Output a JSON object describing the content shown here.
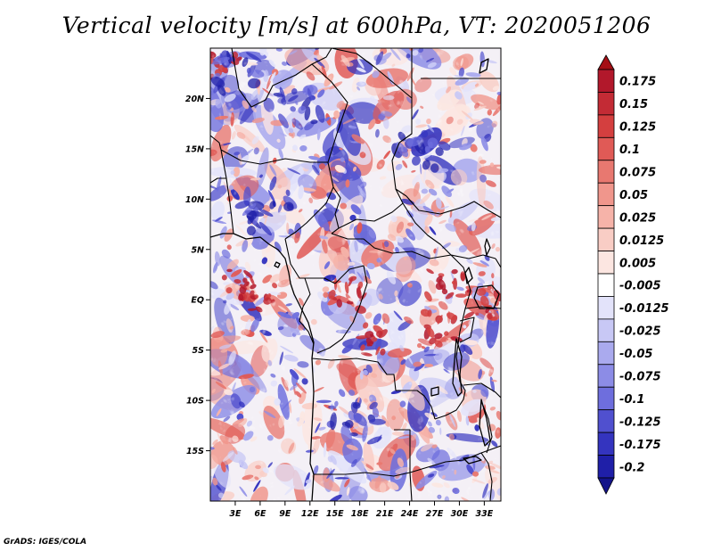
{
  "title": "Vertical velocity [m/s] at 600hPa, VT: 2020051206",
  "credit": "GrADS: IGES/COLA",
  "map": {
    "lon_range": [
      0,
      35
    ],
    "lat_range": [
      -20,
      25
    ],
    "lon_ticks": [
      {
        "value": 3,
        "label": "3E"
      },
      {
        "value": 6,
        "label": "6E"
      },
      {
        "value": 9,
        "label": "9E"
      },
      {
        "value": 12,
        "label": "12E"
      },
      {
        "value": 15,
        "label": "15E"
      },
      {
        "value": 18,
        "label": "18E"
      },
      {
        "value": 21,
        "label": "21E"
      },
      {
        "value": 24,
        "label": "24E"
      },
      {
        "value": 27,
        "label": "27E"
      },
      {
        "value": 30,
        "label": "30E"
      },
      {
        "value": 33,
        "label": "33E"
      }
    ],
    "lat_ticks": [
      {
        "value": 20,
        "label": "20N"
      },
      {
        "value": 15,
        "label": "15N"
      },
      {
        "value": 10,
        "label": "10N"
      },
      {
        "value": 5,
        "label": "5N"
      },
      {
        "value": 0,
        "label": "EQ"
      },
      {
        "value": -5,
        "label": "5S"
      },
      {
        "value": -10,
        "label": "10S"
      },
      {
        "value": -15,
        "label": "15S"
      }
    ]
  },
  "colorbar": {
    "levels": [
      {
        "label": "0.175",
        "color": "#b2182b"
      },
      {
        "label": "0.15",
        "color": "#c32b35"
      },
      {
        "label": "0.125",
        "color": "#d43f3f"
      },
      {
        "label": "0.1",
        "color": "#e05a56"
      },
      {
        "label": "0.075",
        "color": "#e87870"
      },
      {
        "label": "0.05",
        "color": "#f0968c"
      },
      {
        "label": "0.025",
        "color": "#f6b3a9"
      },
      {
        "label": "0.0125",
        "color": "#f9cdc5"
      },
      {
        "label": "0.005",
        "color": "#fce6e1"
      },
      {
        "label": "-0.005",
        "color": "#ffffff"
      },
      {
        "label": "-0.0125",
        "color": "#e3e3fa"
      },
      {
        "label": "-0.025",
        "color": "#c8c8f5"
      },
      {
        "label": "-0.05",
        "color": "#aaaaee"
      },
      {
        "label": "-0.075",
        "color": "#8c8ce6"
      },
      {
        "label": "-0.1",
        "color": "#6e6edd"
      },
      {
        "label": "-0.125",
        "color": "#5050cf"
      },
      {
        "label": "-0.175",
        "color": "#3434bf"
      },
      {
        "label": "-0.2",
        "color": "#1f1fa8"
      }
    ],
    "top_arrow_color": "#a50f15",
    "bottom_arrow_color": "#14148a"
  }
}
